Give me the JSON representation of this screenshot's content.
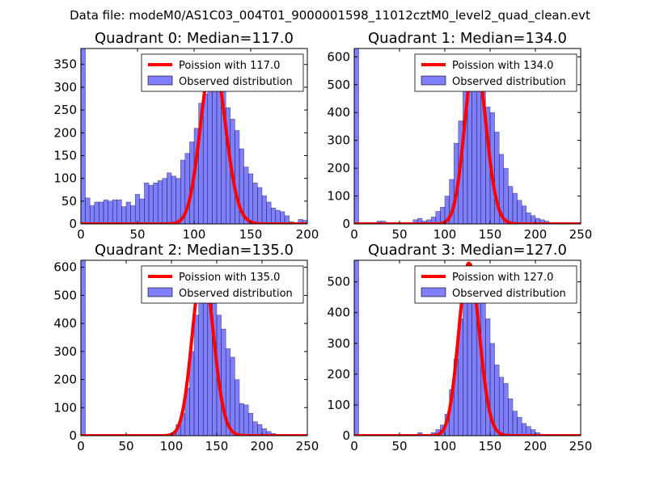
{
  "figure": {
    "suptitle": "Data file: modeM0/AS1C03_004T01_9000001598_11012cztM0_level2_quad_clean.evt",
    "bar_color": "#0000ff",
    "bar_alpha": 0.5,
    "curve_color": "#ff0000"
  },
  "chart_data": [
    {
      "type": "bar",
      "title": "Quadrant 0: Median=117.0",
      "xlim": [
        0,
        200
      ],
      "ylim": [
        0,
        385
      ],
      "xticks": [
        0,
        50,
        100,
        150,
        200
      ],
      "yticks": [
        0,
        50,
        100,
        150,
        200,
        250,
        300,
        350
      ],
      "bin_width": 4,
      "bin_start": 0,
      "counts": [
        385,
        57,
        40,
        48,
        48,
        53,
        50,
        53,
        53,
        38,
        48,
        40,
        65,
        55,
        90,
        85,
        90,
        95,
        100,
        112,
        105,
        100,
        140,
        155,
        180,
        210,
        265,
        285,
        345,
        320,
        330,
        300,
        255,
        230,
        205,
        165,
        125,
        110,
        90,
        80,
        62,
        48,
        35,
        30,
        27,
        18,
        5,
        3,
        10,
        8
      ],
      "curve": {
        "label": "Poission with 117.0",
        "mean": 117.0,
        "peak": 365
      },
      "legend": {
        "curve_label": "Poission with 117.0",
        "bars_label": "Observed distribution",
        "position": "upper right"
      }
    },
    {
      "type": "bar",
      "title": "Quadrant 1: Median=134.0",
      "xlim": [
        0,
        250
      ],
      "ylim": [
        0,
        630
      ],
      "xticks": [
        0,
        50,
        100,
        150,
        200,
        250
      ],
      "yticks": [
        0,
        100,
        200,
        300,
        400,
        500,
        600
      ],
      "bin_width": 5,
      "bin_start": 0,
      "counts": [
        630,
        0,
        0,
        0,
        0,
        10,
        10,
        0,
        0,
        0,
        0,
        0,
        0,
        15,
        20,
        10,
        15,
        25,
        45,
        60,
        100,
        160,
        290,
        370,
        480,
        590,
        560,
        540,
        500,
        420,
        400,
        330,
        250,
        200,
        135,
        110,
        85,
        65,
        40,
        30,
        20,
        15,
        10,
        5,
        5,
        0,
        0,
        0,
        0,
        0
      ],
      "curve": {
        "label": "Poission with 134.0",
        "mean": 134.0,
        "peak": 600
      },
      "legend": {
        "curve_label": "Poission with 134.0",
        "bars_label": "Observed distribution",
        "position": "upper right"
      }
    },
    {
      "type": "bar",
      "title": "Quadrant 2: Median=135.0",
      "xlim": [
        0,
        250
      ],
      "ylim": [
        0,
        625
      ],
      "xticks": [
        0,
        50,
        100,
        150,
        200,
        250
      ],
      "yticks": [
        0,
        100,
        200,
        300,
        400,
        500,
        600
      ],
      "bin_width": 5,
      "bin_start": 0,
      "counts": [
        625,
        0,
        0,
        0,
        0,
        0,
        0,
        0,
        0,
        0,
        0,
        0,
        0,
        0,
        0,
        3,
        0,
        0,
        0,
        0,
        10,
        40,
        80,
        170,
        300,
        430,
        520,
        580,
        570,
        500,
        430,
        380,
        310,
        280,
        200,
        115,
        110,
        80,
        50,
        40,
        25,
        15,
        8,
        5,
        3,
        0,
        0,
        0,
        0,
        0
      ],
      "curve": {
        "label": "Poission with 135.0",
        "mean": 135.0,
        "peak": 600
      },
      "legend": {
        "curve_label": "Poission with 135.0",
        "bars_label": "Observed distribution",
        "position": "upper right"
      }
    },
    {
      "type": "bar",
      "title": "Quadrant 3: Median=127.0",
      "xlim": [
        0,
        250
      ],
      "ylim": [
        0,
        570
      ],
      "xticks": [
        0,
        50,
        100,
        150,
        200,
        250
      ],
      "yticks": [
        0,
        100,
        200,
        300,
        400,
        500
      ],
      "bin_width": 5,
      "bin_start": 0,
      "counts": [
        570,
        0,
        0,
        0,
        0,
        0,
        0,
        0,
        0,
        0,
        0,
        0,
        0,
        0,
        10,
        0,
        0,
        10,
        20,
        35,
        70,
        150,
        250,
        380,
        490,
        560,
        530,
        520,
        450,
        380,
        300,
        230,
        190,
        170,
        120,
        80,
        60,
        40,
        30,
        20,
        10,
        5,
        3,
        0,
        0,
        0,
        0,
        0,
        0,
        0
      ],
      "curve": {
        "label": "Poission with 127.0",
        "mean": 127.0,
        "peak": 560
      },
      "legend": {
        "curve_label": "Poission with 127.0",
        "bars_label": "Observed distribution",
        "position": "upper right"
      }
    }
  ]
}
